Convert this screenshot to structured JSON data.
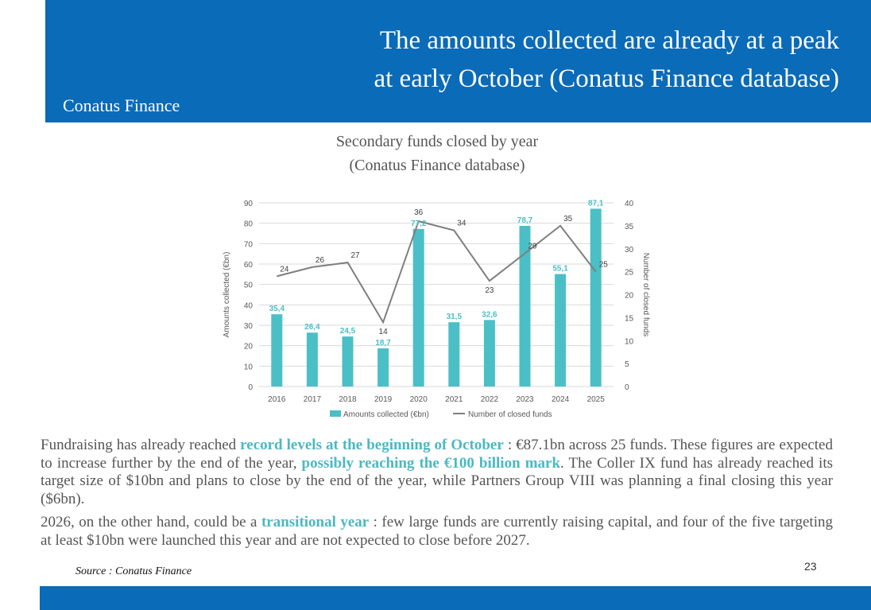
{
  "header": {
    "title_line1": "The amounts collected are already at a peak",
    "title_line2": "at early October (Conatus Finance database)",
    "brand": "Conatus Finance"
  },
  "chart_title_line1": "Secondary funds closed by year",
  "chart_title_line2": "(Conatus Finance database)",
  "colors": {
    "header_bg": "#0a6bb8",
    "bar": "#4bbfc6",
    "line": "#7f7f7f",
    "highlight": "#4bb8c3"
  },
  "chart_data": {
    "type": "bar",
    "categories": [
      "2016",
      "2017",
      "2018",
      "2019",
      "2020",
      "2021",
      "2022",
      "2023",
      "2024",
      "2025"
    ],
    "bar_labels": [
      "35,4",
      "26,4",
      "24,5",
      "18,7",
      "77,2",
      "31,5",
      "32,6",
      "78,7",
      "55,1",
      "87,1"
    ],
    "series": [
      {
        "name": "Amounts collected (€bn)",
        "type": "bar",
        "axis": "left",
        "values": [
          35.4,
          26.4,
          24.5,
          18.7,
          77.2,
          31.5,
          32.6,
          78.7,
          55.1,
          87.1
        ]
      },
      {
        "name": "Number of closed funds",
        "type": "line",
        "axis": "right",
        "values": [
          24,
          26,
          27,
          14,
          36,
          34,
          23,
          29,
          35,
          25
        ]
      }
    ],
    "ylabel": "Amounts collected (€bn)",
    "y2label": "Number of closed funds",
    "ylim": [
      0,
      90
    ],
    "y2lim": [
      0,
      40
    ],
    "yticks": [
      "0",
      "10",
      "20",
      "30",
      "40",
      "50",
      "60",
      "70",
      "80",
      "90"
    ],
    "y2ticks": [
      "0",
      "5",
      "10",
      "15",
      "20",
      "25",
      "30",
      "35",
      "40"
    ],
    "grid": true,
    "legend_position": "bottom"
  },
  "paragraph1": {
    "t1": "Fundraising has already reached ",
    "h1": "record levels at the beginning of October",
    "t2": " : €87.1bn across 25 funds. These figures are expected to increase further by the end of the year, ",
    "h2": "possibly reaching the €100 billion mark",
    "t3": ". The Coller IX fund has already reached its target size of $10bn and plans to close by the end of the year, while Partners Group VIII was planning a final closing this year ($6bn)."
  },
  "paragraph2": {
    "t1": "2026, on the other hand, could be a ",
    "h1": "transitional year",
    "t2": " : few large funds are currently raising capital, and four of the five targeting at least $10bn were launched this year and are not expected to close before 2027."
  },
  "source": "Source : Conatus Finance",
  "page_number": "23"
}
